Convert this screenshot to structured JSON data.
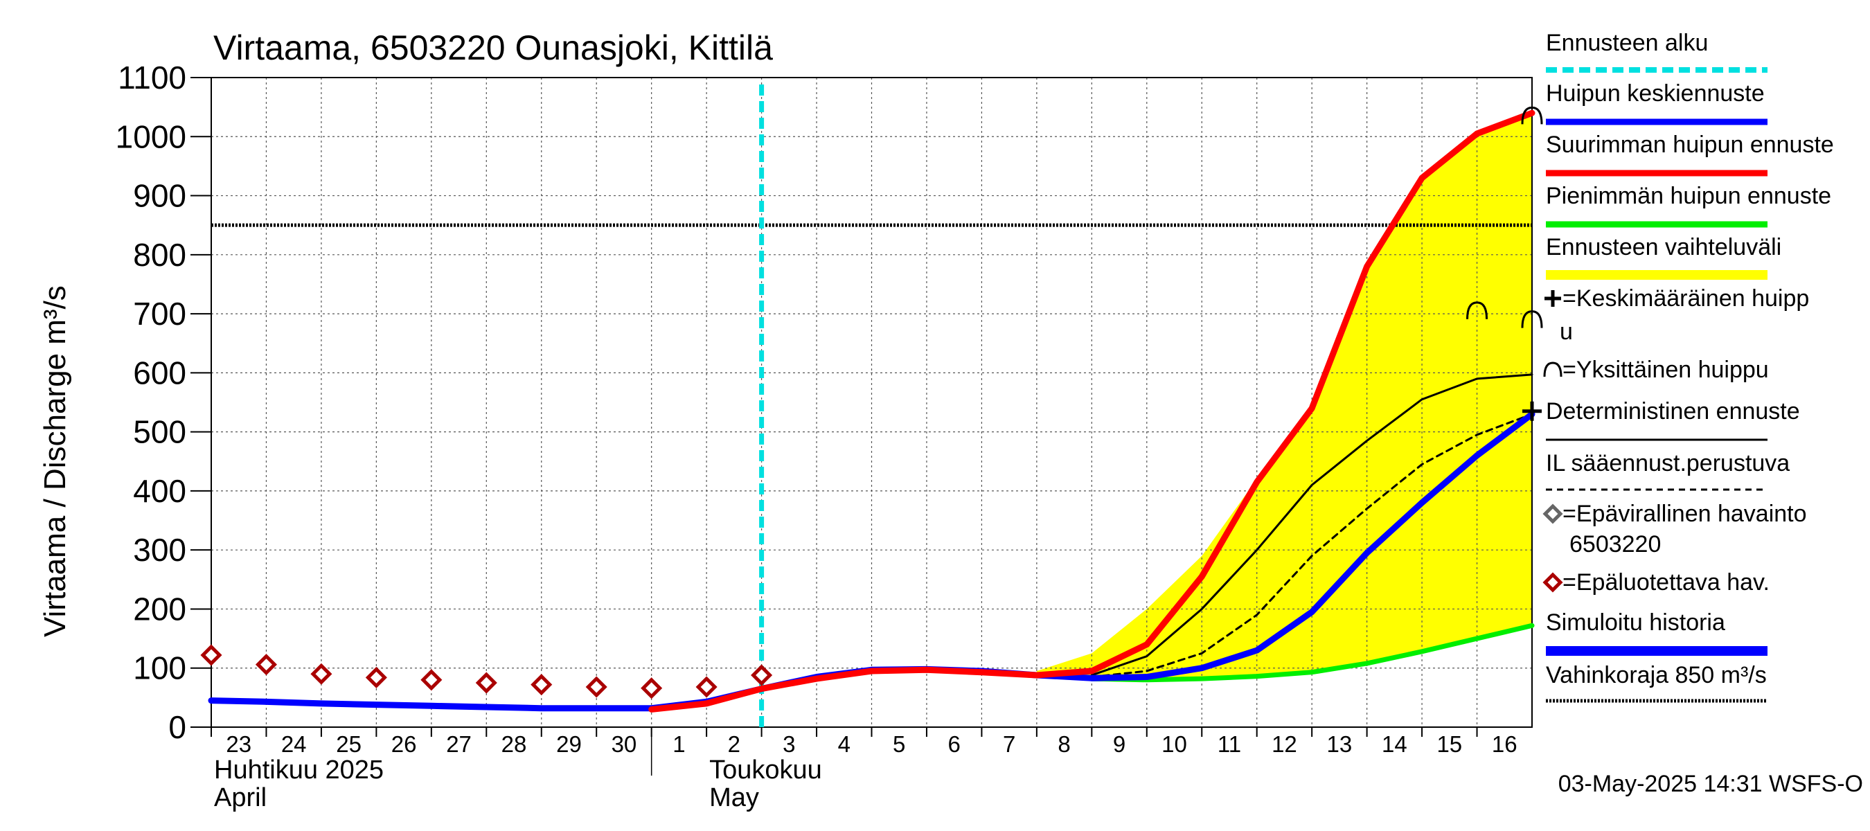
{
  "chart_data": {
    "type": "line",
    "title": "Virtaama, 6503220 Ounasjoki, Kittilä",
    "ylabel": "Virtaama / Discharge    m³/s",
    "ylim": [
      0,
      1100
    ],
    "yticks": [
      0,
      100,
      200,
      300,
      400,
      500,
      600,
      700,
      800,
      900,
      1000,
      1100
    ],
    "x_days": [
      {
        "label": "23",
        "x": 0
      },
      {
        "label": "24",
        "x": 1
      },
      {
        "label": "25",
        "x": 2
      },
      {
        "label": "26",
        "x": 3
      },
      {
        "label": "27",
        "x": 4
      },
      {
        "label": "28",
        "x": 5
      },
      {
        "label": "29",
        "x": 6
      },
      {
        "label": "30",
        "x": 7
      },
      {
        "label": "1",
        "x": 8
      },
      {
        "label": "2",
        "x": 9
      },
      {
        "label": "3",
        "x": 10
      },
      {
        "label": "4",
        "x": 11
      },
      {
        "label": "5",
        "x": 12
      },
      {
        "label": "6",
        "x": 13
      },
      {
        "label": "7",
        "x": 14
      },
      {
        "label": "8",
        "x": 15
      },
      {
        "label": "9",
        "x": 16
      },
      {
        "label": "10",
        "x": 17
      },
      {
        "label": "11",
        "x": 18
      },
      {
        "label": "12",
        "x": 19
      },
      {
        "label": "13",
        "x": 20
      },
      {
        "label": "14",
        "x": 21
      },
      {
        "label": "15",
        "x": 22
      },
      {
        "label": "16",
        "x": 23
      }
    ],
    "xlim": [
      0,
      24
    ],
    "month_labels": [
      {
        "x": 0,
        "line1": "Huhtikuu  2025",
        "line2": "April"
      },
      {
        "x": 9,
        "line1": "Toukokuu",
        "line2": "May"
      }
    ],
    "month_divider_x": 8,
    "forecast_start_x": 10,
    "damage_limit": 850,
    "series": [
      {
        "name": "Simuloitu historia",
        "color": "#0000ff",
        "x": [
          0,
          1,
          2,
          3,
          4,
          5,
          6,
          7,
          8,
          9,
          10,
          11,
          12,
          13,
          14,
          15,
          16,
          17
        ],
        "y": [
          45,
          43,
          40,
          38,
          36,
          34,
          32,
          32,
          32,
          43,
          65,
          85,
          97,
          98,
          95,
          88,
          83,
          82
        ]
      },
      {
        "name": "Huipun keskiennuste",
        "color": "#0000ff",
        "x": [
          16,
          17,
          18,
          19,
          20,
          21,
          22,
          23,
          24
        ],
        "y": [
          83,
          85,
          100,
          130,
          195,
          295,
          380,
          460,
          530
        ]
      },
      {
        "name": "Suurimman huipun ennuste",
        "color": "#ff0000",
        "x": [
          8,
          9,
          10,
          11,
          12,
          13,
          14,
          15,
          16,
          17,
          18,
          19,
          20,
          21,
          22,
          23,
          24
        ],
        "y": [
          30,
          40,
          65,
          82,
          95,
          97,
          93,
          88,
          95,
          140,
          255,
          415,
          540,
          780,
          930,
          1005,
          1040
        ]
      },
      {
        "name": "Pienimmän huipun ennuste",
        "color": "#00ee00",
        "x": [
          16,
          17,
          18,
          19,
          20,
          21,
          22,
          23,
          24
        ],
        "y": [
          82,
          80,
          82,
          86,
          93,
          108,
          128,
          150,
          172
        ]
      },
      {
        "name": "Deterministinen ennuste",
        "color": "#000000",
        "x": [
          16,
          17,
          18,
          19,
          20,
          21,
          22,
          23,
          24
        ],
        "y": [
          88,
          120,
          200,
          300,
          410,
          485,
          555,
          590,
          597
        ]
      },
      {
        "name": "IL sääennust.perustuva",
        "color": "#000000",
        "x": [
          16,
          17,
          18,
          19,
          20,
          21,
          22,
          23,
          24
        ],
        "y": [
          85,
          95,
          125,
          190,
          290,
          370,
          445,
          495,
          530
        ]
      }
    ],
    "band": {
      "name": "Ennusteen vaihteluväli",
      "color": "#ffff00",
      "x": [
        15,
        16,
        17,
        18,
        19,
        20,
        21,
        22,
        23,
        24
      ],
      "upper": [
        95,
        125,
        200,
        290,
        420,
        540,
        780,
        930,
        1005,
        1040
      ],
      "lower": [
        88,
        82,
        80,
        82,
        86,
        93,
        108,
        128,
        150,
        172
      ]
    },
    "observations_unreliable": {
      "name": "=Epäluotettava hav.",
      "color": "#aa0000",
      "x": [
        0,
        1,
        2,
        3,
        4,
        5,
        6,
        7,
        8,
        9,
        10
      ],
      "y": [
        122,
        106,
        90,
        84,
        80,
        75,
        72,
        68,
        66,
        68,
        88
      ]
    },
    "single_peaks": [
      {
        "x": 23,
        "y": 705
      },
      {
        "x": 24,
        "y": 690
      },
      {
        "x": 24,
        "y": 1035
      }
    ],
    "mean_peak": {
      "x": 24,
      "y": 535
    },
    "legend": [
      {
        "label": "Ennusteen alku",
        "style": "cyan-dash"
      },
      {
        "label": "Huipun keskiennuste",
        "style": "blue"
      },
      {
        "label": "Suurimman huipun ennuste",
        "style": "red"
      },
      {
        "label": "Pienimmän huipun ennuste",
        "style": "green"
      },
      {
        "label": "Ennusteen vaihteluväli",
        "style": "yellow"
      },
      {
        "label": "=Keskimääräinen huipp",
        "label2": "u",
        "style": "plus"
      },
      {
        "label": "=Yksittäinen huippu",
        "style": "arch"
      },
      {
        "label": "Deterministinen ennuste",
        "style": "black"
      },
      {
        "label": "IL sääennust.perustuva",
        "style": "black-dash"
      },
      {
        "label": "=Epävirallinen havainto",
        "label2": "6503220",
        "style": "grey-diamond"
      },
      {
        "label": "=Epäluotettava hav.",
        "style": "red-diamond"
      },
      {
        "label": "Simuloitu historia",
        "style": "blue-thick"
      },
      {
        "label": "Vahinkoraja 850 m³/s",
        "style": "dotted"
      }
    ],
    "timestamp": "03-May-2025 14:31 WSFS-O"
  }
}
